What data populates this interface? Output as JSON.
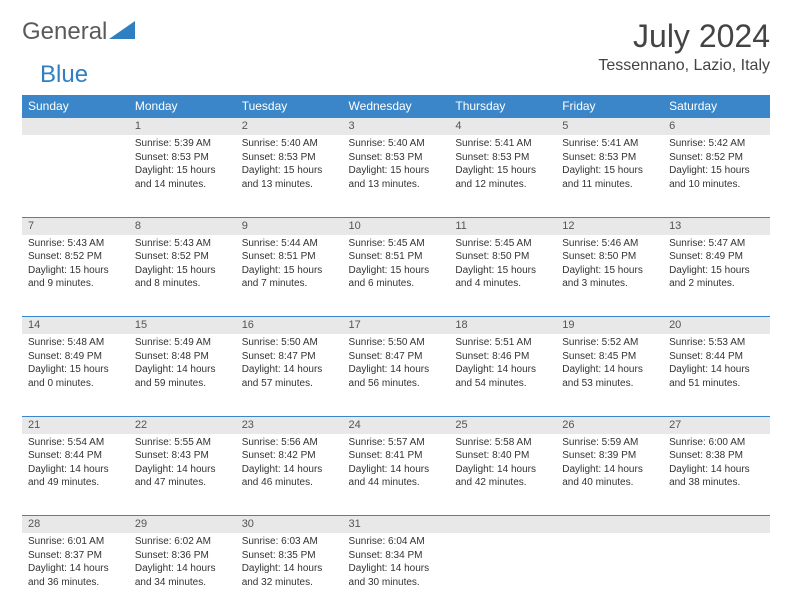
{
  "logo": {
    "text1": "General",
    "text2": "Blue"
  },
  "title": "July 2024",
  "location": "Tessennano, Lazio, Italy",
  "header_bg": "#3a86c8",
  "rule_color": "#3a86c8",
  "daynum_bg": "#e8e8e8",
  "weekdays": [
    "Sunday",
    "Monday",
    "Tuesday",
    "Wednesday",
    "Thursday",
    "Friday",
    "Saturday"
  ],
  "weeks": [
    [
      null,
      {
        "n": "1",
        "sr": "5:39 AM",
        "ss": "8:53 PM",
        "dl": "15 hours and 14 minutes."
      },
      {
        "n": "2",
        "sr": "5:40 AM",
        "ss": "8:53 PM",
        "dl": "15 hours and 13 minutes."
      },
      {
        "n": "3",
        "sr": "5:40 AM",
        "ss": "8:53 PM",
        "dl": "15 hours and 13 minutes."
      },
      {
        "n": "4",
        "sr": "5:41 AM",
        "ss": "8:53 PM",
        "dl": "15 hours and 12 minutes."
      },
      {
        "n": "5",
        "sr": "5:41 AM",
        "ss": "8:53 PM",
        "dl": "15 hours and 11 minutes."
      },
      {
        "n": "6",
        "sr": "5:42 AM",
        "ss": "8:52 PM",
        "dl": "15 hours and 10 minutes."
      }
    ],
    [
      {
        "n": "7",
        "sr": "5:43 AM",
        "ss": "8:52 PM",
        "dl": "15 hours and 9 minutes."
      },
      {
        "n": "8",
        "sr": "5:43 AM",
        "ss": "8:52 PM",
        "dl": "15 hours and 8 minutes."
      },
      {
        "n": "9",
        "sr": "5:44 AM",
        "ss": "8:51 PM",
        "dl": "15 hours and 7 minutes."
      },
      {
        "n": "10",
        "sr": "5:45 AM",
        "ss": "8:51 PM",
        "dl": "15 hours and 6 minutes."
      },
      {
        "n": "11",
        "sr": "5:45 AM",
        "ss": "8:50 PM",
        "dl": "15 hours and 4 minutes."
      },
      {
        "n": "12",
        "sr": "5:46 AM",
        "ss": "8:50 PM",
        "dl": "15 hours and 3 minutes."
      },
      {
        "n": "13",
        "sr": "5:47 AM",
        "ss": "8:49 PM",
        "dl": "15 hours and 2 minutes."
      }
    ],
    [
      {
        "n": "14",
        "sr": "5:48 AM",
        "ss": "8:49 PM",
        "dl": "15 hours and 0 minutes."
      },
      {
        "n": "15",
        "sr": "5:49 AM",
        "ss": "8:48 PM",
        "dl": "14 hours and 59 minutes."
      },
      {
        "n": "16",
        "sr": "5:50 AM",
        "ss": "8:47 PM",
        "dl": "14 hours and 57 minutes."
      },
      {
        "n": "17",
        "sr": "5:50 AM",
        "ss": "8:47 PM",
        "dl": "14 hours and 56 minutes."
      },
      {
        "n": "18",
        "sr": "5:51 AM",
        "ss": "8:46 PM",
        "dl": "14 hours and 54 minutes."
      },
      {
        "n": "19",
        "sr": "5:52 AM",
        "ss": "8:45 PM",
        "dl": "14 hours and 53 minutes."
      },
      {
        "n": "20",
        "sr": "5:53 AM",
        "ss": "8:44 PM",
        "dl": "14 hours and 51 minutes."
      }
    ],
    [
      {
        "n": "21",
        "sr": "5:54 AM",
        "ss": "8:44 PM",
        "dl": "14 hours and 49 minutes."
      },
      {
        "n": "22",
        "sr": "5:55 AM",
        "ss": "8:43 PM",
        "dl": "14 hours and 47 minutes."
      },
      {
        "n": "23",
        "sr": "5:56 AM",
        "ss": "8:42 PM",
        "dl": "14 hours and 46 minutes."
      },
      {
        "n": "24",
        "sr": "5:57 AM",
        "ss": "8:41 PM",
        "dl": "14 hours and 44 minutes."
      },
      {
        "n": "25",
        "sr": "5:58 AM",
        "ss": "8:40 PM",
        "dl": "14 hours and 42 minutes."
      },
      {
        "n": "26",
        "sr": "5:59 AM",
        "ss": "8:39 PM",
        "dl": "14 hours and 40 minutes."
      },
      {
        "n": "27",
        "sr": "6:00 AM",
        "ss": "8:38 PM",
        "dl": "14 hours and 38 minutes."
      }
    ],
    [
      {
        "n": "28",
        "sr": "6:01 AM",
        "ss": "8:37 PM",
        "dl": "14 hours and 36 minutes."
      },
      {
        "n": "29",
        "sr": "6:02 AM",
        "ss": "8:36 PM",
        "dl": "14 hours and 34 minutes."
      },
      {
        "n": "30",
        "sr": "6:03 AM",
        "ss": "8:35 PM",
        "dl": "14 hours and 32 minutes."
      },
      {
        "n": "31",
        "sr": "6:04 AM",
        "ss": "8:34 PM",
        "dl": "14 hours and 30 minutes."
      },
      null,
      null,
      null
    ]
  ],
  "labels": {
    "sunrise": "Sunrise: ",
    "sunset": "Sunset: ",
    "daylight": "Daylight: "
  }
}
